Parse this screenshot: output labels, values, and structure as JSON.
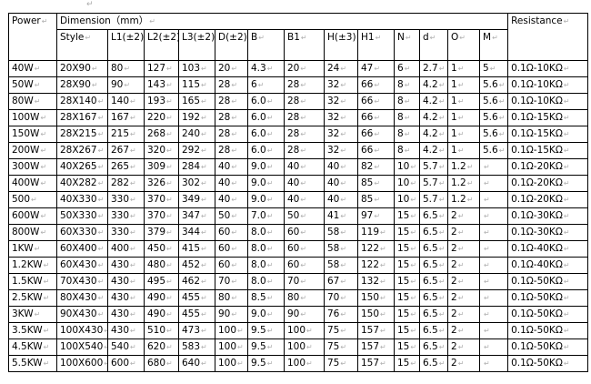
{
  "header": {
    "power": "Power",
    "dimension": "Dimension（mm）",
    "resistance": "Resistance",
    "columns": [
      "Style",
      "L1(±2)",
      "L2(±2)",
      "L3(±2)",
      "D(±2)",
      "B",
      "B1",
      "H(±3)",
      "H1",
      "N",
      "d",
      "O",
      "M"
    ]
  },
  "rows": [
    [
      "40W",
      "20X90",
      "80",
      "127",
      "103",
      "20",
      "4.3",
      "20",
      "24",
      "47",
      "6",
      "2.7",
      "1",
      "5",
      "0.1Ω-10KΩ"
    ],
    [
      "50W",
      "28X90",
      "90",
      "143",
      "115",
      "28",
      "6",
      "28",
      "32",
      "66",
      "8",
      "4.2",
      "1",
      "5.6",
      "0.1Ω-10KΩ"
    ],
    [
      "80W",
      "28X140",
      "140",
      "193",
      "165",
      "28",
      "6.0",
      "28",
      "32",
      "66",
      "8",
      "4.2",
      "1",
      "5.6",
      "0.1Ω-10KΩ"
    ],
    [
      "100W",
      "28X167",
      "167",
      "220",
      "192",
      "28",
      "6.0",
      "28",
      "32",
      "66",
      "8",
      "4.2",
      "1",
      "5.6",
      "0.1Ω-15KΩ"
    ],
    [
      "150W",
      "28X215",
      "215",
      "268",
      "240",
      "28",
      "6.0",
      "28",
      "32",
      "66",
      "8",
      "4.2",
      "1",
      "5.6",
      "0.1Ω-15KΩ"
    ],
    [
      "200W",
      "28X267",
      "267",
      "320",
      "292",
      "28",
      "6.0",
      "28",
      "32",
      "66",
      "8",
      "4.2",
      "1",
      "5.6",
      "0.1Ω-15KΩ"
    ],
    [
      "300W",
      "40X265",
      "265",
      "309",
      "284",
      "40",
      "9.0",
      "40",
      "40",
      "82",
      "10",
      "5.7",
      "1.2",
      "",
      "0.1Ω-20KΩ"
    ],
    [
      "400W",
      "40X282",
      "282",
      "326",
      "302",
      "40",
      "9.0",
      "40",
      "40",
      "85",
      "10",
      "5.7",
      "1.2",
      "",
      "0.1Ω-20KΩ"
    ],
    [
      "500",
      "40X330",
      "330",
      "370",
      "349",
      "40",
      "9.0",
      "40",
      "40",
      "85",
      "10",
      "5.7",
      "1.2",
      "",
      "0.1Ω-20KΩ"
    ],
    [
      "600W",
      "50X330",
      "330",
      "370",
      "347",
      "50",
      "7.0",
      "50",
      "41",
      "97",
      "15",
      "6.5",
      "2",
      "",
      "0.1Ω-30KΩ"
    ],
    [
      "800W",
      "60X330",
      "330",
      "379",
      "344",
      "60",
      "8.0",
      "60",
      "58",
      "119",
      "15",
      "6.5",
      "2",
      "",
      "0.1Ω-30KΩ"
    ],
    [
      "1KW",
      "60X400",
      "400",
      "450",
      "415",
      "60",
      "8.0",
      "60",
      "58",
      "122",
      "15",
      "6.5",
      "2",
      "",
      "0.1Ω-40KΩ"
    ],
    [
      "1.2KW",
      "60X430",
      "430",
      "480",
      "452",
      "60",
      "8.0",
      "60",
      "58",
      "122",
      "15",
      "6.5",
      "2",
      "",
      "0.1Ω-40KΩ"
    ],
    [
      "1.5KW",
      "70X430",
      "430",
      "495",
      "462",
      "70",
      "8.0",
      "70",
      "67",
      "132",
      "15",
      "6.5",
      "2",
      "",
      "0.1Ω-50KΩ"
    ],
    [
      "2.5KW",
      "80X430",
      "430",
      "490",
      "455",
      "80",
      "8.5",
      "80",
      "70",
      "150",
      "15",
      "6.5",
      "2",
      "",
      "0.1Ω-50KΩ"
    ],
    [
      "3KW",
      "90X430",
      "430",
      "490",
      "455",
      "90",
      "9.0",
      "90",
      "76",
      "150",
      "15",
      "6.5",
      "2",
      "",
      "0.1Ω-50KΩ"
    ],
    [
      "3.5KW",
      "100X430",
      "430",
      "510",
      "473",
      "100",
      "9.5",
      "100",
      "75",
      "157",
      "15",
      "6.5",
      "2",
      "",
      "0.1Ω-50KΩ"
    ],
    [
      "4.5KW",
      "100X540",
      "540",
      "620",
      "583",
      "100",
      "9.5",
      "100",
      "75",
      "157",
      "15",
      "6.5",
      "2",
      "",
      "0.1Ω-50KΩ"
    ],
    [
      "5.5KW",
      "100X600",
      "600",
      "680",
      "640",
      "100",
      "9.5",
      "100",
      "75",
      "157",
      "15",
      "6.5",
      "2",
      "",
      "0.1Ω-50KΩ"
    ]
  ]
}
